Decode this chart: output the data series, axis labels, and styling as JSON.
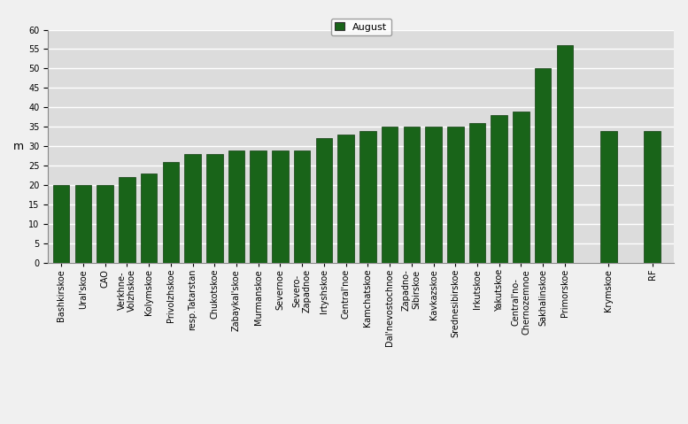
{
  "categories": [
    "Bashkirskoe",
    "Ural'skoe",
    "CAO",
    "Verkhne-\nVolzhskoe",
    "Kolymskoe",
    "Privolzhskoe",
    "resp.Tatarstan",
    "Chukotskoe",
    "Zabaykal'skoe",
    "Murmanskoe",
    "Severnoe",
    "Severo-\nZapadnoe",
    "Irtyshskoe",
    "Central'noe",
    "Kamchatskoe",
    "Dal'nevostochnoe",
    "Zapadno-\nSibirskoe",
    "Kavkazskoe",
    "Srednesibirskoe",
    "Irkutskoe",
    "Yakutskoe",
    "Central'no-\nChernozemnoe",
    "Sakhalinskoe",
    "Primorskoe",
    "Krymskoe",
    "RF"
  ],
  "values": [
    20,
    20,
    20,
    22,
    23,
    26,
    28,
    28,
    29,
    29,
    29,
    29,
    32,
    33,
    34,
    35,
    35,
    35,
    35,
    36,
    38,
    39,
    50,
    56,
    34,
    34
  ],
  "x_positions": [
    0,
    1,
    2,
    3,
    4,
    5,
    6,
    7,
    8,
    9,
    10,
    11,
    12,
    13,
    14,
    15,
    16,
    17,
    18,
    19,
    20,
    21,
    22,
    23,
    25,
    27
  ],
  "bar_color": "#196419",
  "bar_edge_color": "#0f3d0f",
  "legend_label": "August",
  "ylabel": "m",
  "ylim": [
    0,
    60
  ],
  "yticks": [
    0,
    5,
    10,
    15,
    20,
    25,
    30,
    35,
    40,
    45,
    50,
    55,
    60
  ],
  "background_color": "#dcdcdc",
  "grid_color": "#ffffff",
  "tick_fontsize": 7,
  "label_fontsize": 9
}
